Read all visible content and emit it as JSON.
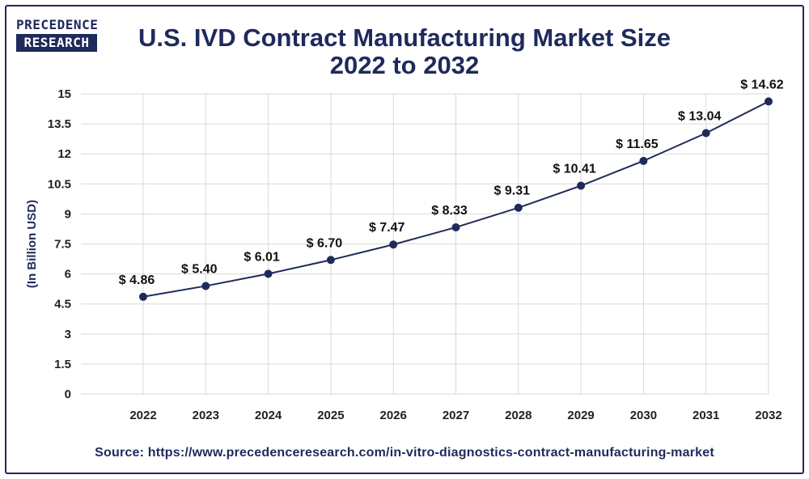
{
  "logo": {
    "line1": "PRECEDENCE",
    "line2": "RESEARCH"
  },
  "title": {
    "line1": "U.S. IVD Contract Manufacturing Market Size",
    "line2": "2022 to 2032"
  },
  "source": "Source: https://www.precedenceresearch.com/in-vitro-diagnostics-contract-manufacturing-market",
  "colors": {
    "primary": "#1f2a5c",
    "grid": "#d9d9d9"
  },
  "chart_data": {
    "type": "line",
    "title": "U.S. IVD Contract Manufacturing Market Size 2022 to 2032",
    "xlabel": "",
    "ylabel": "(In Billion USD)",
    "ylim": [
      0,
      15
    ],
    "yticks": [
      0,
      1.5,
      3,
      4.5,
      6,
      7.5,
      9,
      10.5,
      12,
      13.5,
      15
    ],
    "ytick_labels": [
      "0",
      "1.5",
      "3",
      "4.5",
      "6",
      "7.5",
      "9",
      "10.5",
      "12",
      "13.5",
      "15"
    ],
    "grid": true,
    "categories": [
      "2022",
      "2023",
      "2024",
      "2025",
      "2026",
      "2027",
      "2028",
      "2029",
      "2030",
      "2031",
      "2032"
    ],
    "series": [
      {
        "name": "U.S. IVD Contract Manufacturing Market Size",
        "values": [
          4.86,
          5.4,
          6.01,
          6.7,
          7.47,
          8.33,
          9.31,
          10.41,
          11.65,
          13.04,
          14.62
        ],
        "labels": [
          "$ 4.86",
          "$ 5.40",
          "$ 6.01",
          "$ 6.70",
          "$ 7.47",
          "$ 8.33",
          "$ 9.31",
          "$ 10.41",
          "$ 11.65",
          "$ 13.04",
          "$ 14.62"
        ]
      }
    ]
  }
}
